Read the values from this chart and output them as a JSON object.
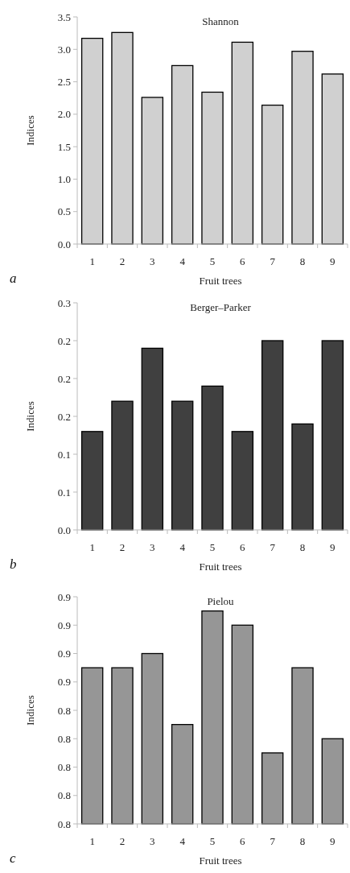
{
  "chart_data": [
    {
      "type": "bar",
      "title": "Shannon",
      "xlabel": "Fruit trees",
      "ylabel": "Indices",
      "annotations": [
        "a"
      ],
      "categories": [
        "1",
        "2",
        "3",
        "4",
        "5",
        "6",
        "7",
        "8",
        "9"
      ],
      "color": "#d0d0d0",
      "values": [
        3.17,
        3.26,
        2.26,
        2.75,
        2.34,
        3.11,
        2.14,
        2.97,
        2.62
      ],
      "ylim": [
        0,
        3.5
      ],
      "yticks": [
        {
          "value": 0,
          "label": "0.0"
        },
        {
          "value": 0.5,
          "label": "0.5"
        },
        {
          "value": 1,
          "label": "1.0"
        },
        {
          "value": 1.5,
          "label": "1.5"
        },
        {
          "value": 2,
          "label": "2.0"
        },
        {
          "value": 2.5,
          "label": "2.5"
        },
        {
          "value": 3,
          "label": "3.0"
        },
        {
          "value": 3.5,
          "label": "3.5"
        }
      ],
      "grid": false
    },
    {
      "type": "bar",
      "title": "Berger–Parker",
      "xlabel": "Fruit trees",
      "ylabel": "Indices",
      "annotations": [
        "b"
      ],
      "categories": [
        "1",
        "2",
        "3",
        "4",
        "5",
        "6",
        "7",
        "8",
        "9"
      ],
      "color": "#404040",
      "values": [
        0.13,
        0.17,
        0.24,
        0.17,
        0.19,
        0.13,
        0.25,
        0.14,
        0.25
      ],
      "ylim": [
        0,
        0.3
      ],
      "yticks": [
        {
          "value": 0,
          "label": "0.0"
        },
        {
          "value": 0.05,
          "label": "0.1"
        },
        {
          "value": 0.1,
          "label": "0.1"
        },
        {
          "value": 0.15,
          "label": "0.2"
        },
        {
          "value": 0.2,
          "label": "0.2"
        },
        {
          "value": 0.25,
          "label": "0.2"
        },
        {
          "value": 0.3,
          "label": "0.3"
        }
      ],
      "grid": false
    },
    {
      "type": "bar",
      "title": "Pielou",
      "xlabel": "Fruit trees",
      "ylabel": "Indices",
      "annotations": [
        "c"
      ],
      "categories": [
        "1",
        "2",
        "3",
        "4",
        "5",
        "6",
        "7",
        "8",
        "9"
      ],
      "color": "#969696",
      "values": [
        0.87,
        0.87,
        0.88,
        0.83,
        0.91,
        0.9,
        0.81,
        0.87,
        0.82
      ],
      "ylim": [
        0.76,
        0.92
      ],
      "yticks": [
        {
          "value": 0.76,
          "label": "0.8"
        },
        {
          "value": 0.78,
          "label": "0.8"
        },
        {
          "value": 0.8,
          "label": "0.8"
        },
        {
          "value": 0.82,
          "label": "0.8"
        },
        {
          "value": 0.84,
          "label": "0.8"
        },
        {
          "value": 0.86,
          "label": "0.9"
        },
        {
          "value": 0.88,
          "label": "0.9"
        },
        {
          "value": 0.9,
          "label": "0.9"
        },
        {
          "value": 0.92,
          "label": "0.9"
        }
      ],
      "grid": false
    }
  ]
}
